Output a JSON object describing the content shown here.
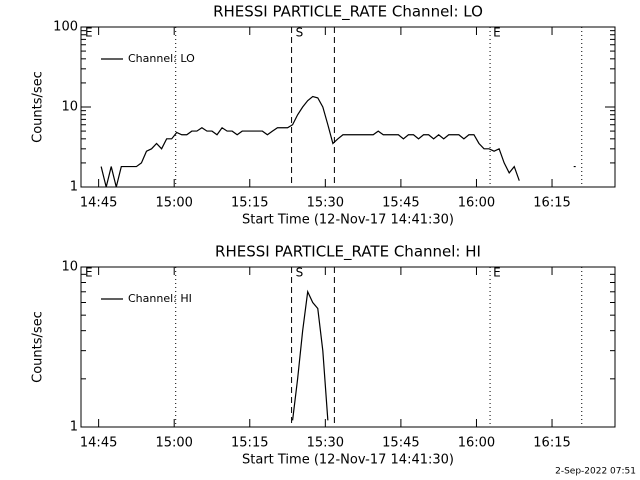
{
  "chart_data": [
    {
      "type": "line",
      "title": "RHESSI PARTICLE_RATE Channel: LO",
      "x_label": "Start Time (12-Nov-17 14:41:30)",
      "y_label": "Counts/sec",
      "xlim": [
        0,
        106
      ],
      "xticks": [
        {
          "value": 3.5,
          "label": "14:45"
        },
        {
          "value": 18.5,
          "label": "15:00"
        },
        {
          "value": 33.5,
          "label": "15:15"
        },
        {
          "value": 48.5,
          "label": "15:30"
        },
        {
          "value": 63.5,
          "label": "15:45"
        },
        {
          "value": 78.5,
          "label": "16:00"
        },
        {
          "value": 93.5,
          "label": "16:15"
        }
      ],
      "ylim": [
        1,
        100
      ],
      "yticks": [
        1,
        10,
        100
      ],
      "log_y": true,
      "legend": "upper left",
      "x": [
        4,
        5,
        6,
        7,
        8,
        9,
        10,
        11,
        12,
        13,
        14,
        15,
        16,
        17,
        18,
        19,
        20,
        21,
        22,
        23,
        24,
        25,
        26,
        27,
        28,
        29,
        30,
        31,
        32,
        33,
        34,
        35,
        36,
        37,
        38,
        39,
        40,
        41,
        42,
        43,
        44,
        45,
        46,
        47,
        48,
        49,
        50,
        51,
        52,
        53,
        54,
        55,
        56,
        57,
        58,
        59,
        60,
        61,
        62,
        63,
        64,
        65,
        66,
        67,
        68,
        69,
        70,
        71,
        72,
        73,
        74,
        75,
        76,
        77,
        78,
        79,
        80,
        81,
        82,
        83,
        84,
        85,
        86,
        87,
        88,
        98
      ],
      "series": [
        {
          "name": "Channel: LO",
          "color": "#000000",
          "values": [
            1.8,
            1,
            1.8,
            1,
            1.8,
            1.8,
            1.8,
            1.8,
            2,
            2.8,
            3,
            3.5,
            3,
            4,
            4,
            4.8,
            4.5,
            4.5,
            5,
            5,
            5.5,
            5,
            5,
            4.5,
            5.5,
            5,
            5,
            4.5,
            5,
            5,
            5,
            5,
            5,
            4.5,
            5,
            5.5,
            5.5,
            5.5,
            6,
            8,
            10,
            12,
            13.5,
            13,
            10,
            6,
            3.5,
            4,
            4.5,
            4.5,
            4.5,
            4.5,
            4.5,
            4.5,
            4.5,
            5,
            4.5,
            4.5,
            4.5,
            4.5,
            4,
            4.5,
            4.5,
            4,
            4.5,
            4.5,
            4,
            4.5,
            4,
            4.5,
            4.5,
            4.5,
            4,
            4.5,
            4.5,
            3.5,
            3,
            3,
            2.8,
            3,
            2,
            1.5,
            1.8,
            1.2,
            null,
            1.8
          ]
        }
      ],
      "vlines": [
        {
          "x": 18.8,
          "style": "dotted"
        },
        {
          "x": 41.8,
          "style": "dashed"
        },
        {
          "x": 50.3,
          "style": "dashed"
        },
        {
          "x": 81.2,
          "style": "dotted"
        },
        {
          "x": 99.4,
          "style": "dotted"
        }
      ],
      "annotations": [
        {
          "label": "E",
          "x": 0.8
        },
        {
          "label": "S",
          "x": 42.6
        },
        {
          "label": "E",
          "x": 81.8
        }
      ]
    },
    {
      "type": "line",
      "title": "RHESSI PARTICLE_RATE Channel: HI",
      "x_label": "Start Time (12-Nov-17 14:41:30)",
      "y_label": "Counts/sec",
      "xlim": [
        0,
        106
      ],
      "xticks": [
        {
          "value": 3.5,
          "label": "14:45"
        },
        {
          "value": 18.5,
          "label": "15:00"
        },
        {
          "value": 33.5,
          "label": "15:15"
        },
        {
          "value": 48.5,
          "label": "15:30"
        },
        {
          "value": 63.5,
          "label": "15:45"
        },
        {
          "value": 78.5,
          "label": "16:00"
        },
        {
          "value": 93.5,
          "label": "16:15"
        }
      ],
      "ylim": [
        1,
        10
      ],
      "yticks": [
        1,
        10
      ],
      "log_y": true,
      "legend": "upper left",
      "x": [
        42,
        43,
        44,
        45,
        46,
        47,
        48,
        49
      ],
      "series": [
        {
          "name": "Channel: HI",
          "color": "#000000",
          "values": [
            1.1,
            2,
            4,
            7,
            6,
            5.5,
            3,
            1.1
          ]
        }
      ],
      "vlines": [
        {
          "x": 18.8,
          "style": "dotted"
        },
        {
          "x": 41.8,
          "style": "dashed"
        },
        {
          "x": 50.3,
          "style": "dashed"
        },
        {
          "x": 81.2,
          "style": "dotted"
        },
        {
          "x": 99.4,
          "style": "dotted"
        }
      ],
      "annotations": [
        {
          "label": "E",
          "x": 0.8
        },
        {
          "label": "S",
          "x": 42.6
        },
        {
          "label": "E",
          "x": 81.8
        }
      ]
    }
  ],
  "footer": "2-Sep-2022 07:51"
}
